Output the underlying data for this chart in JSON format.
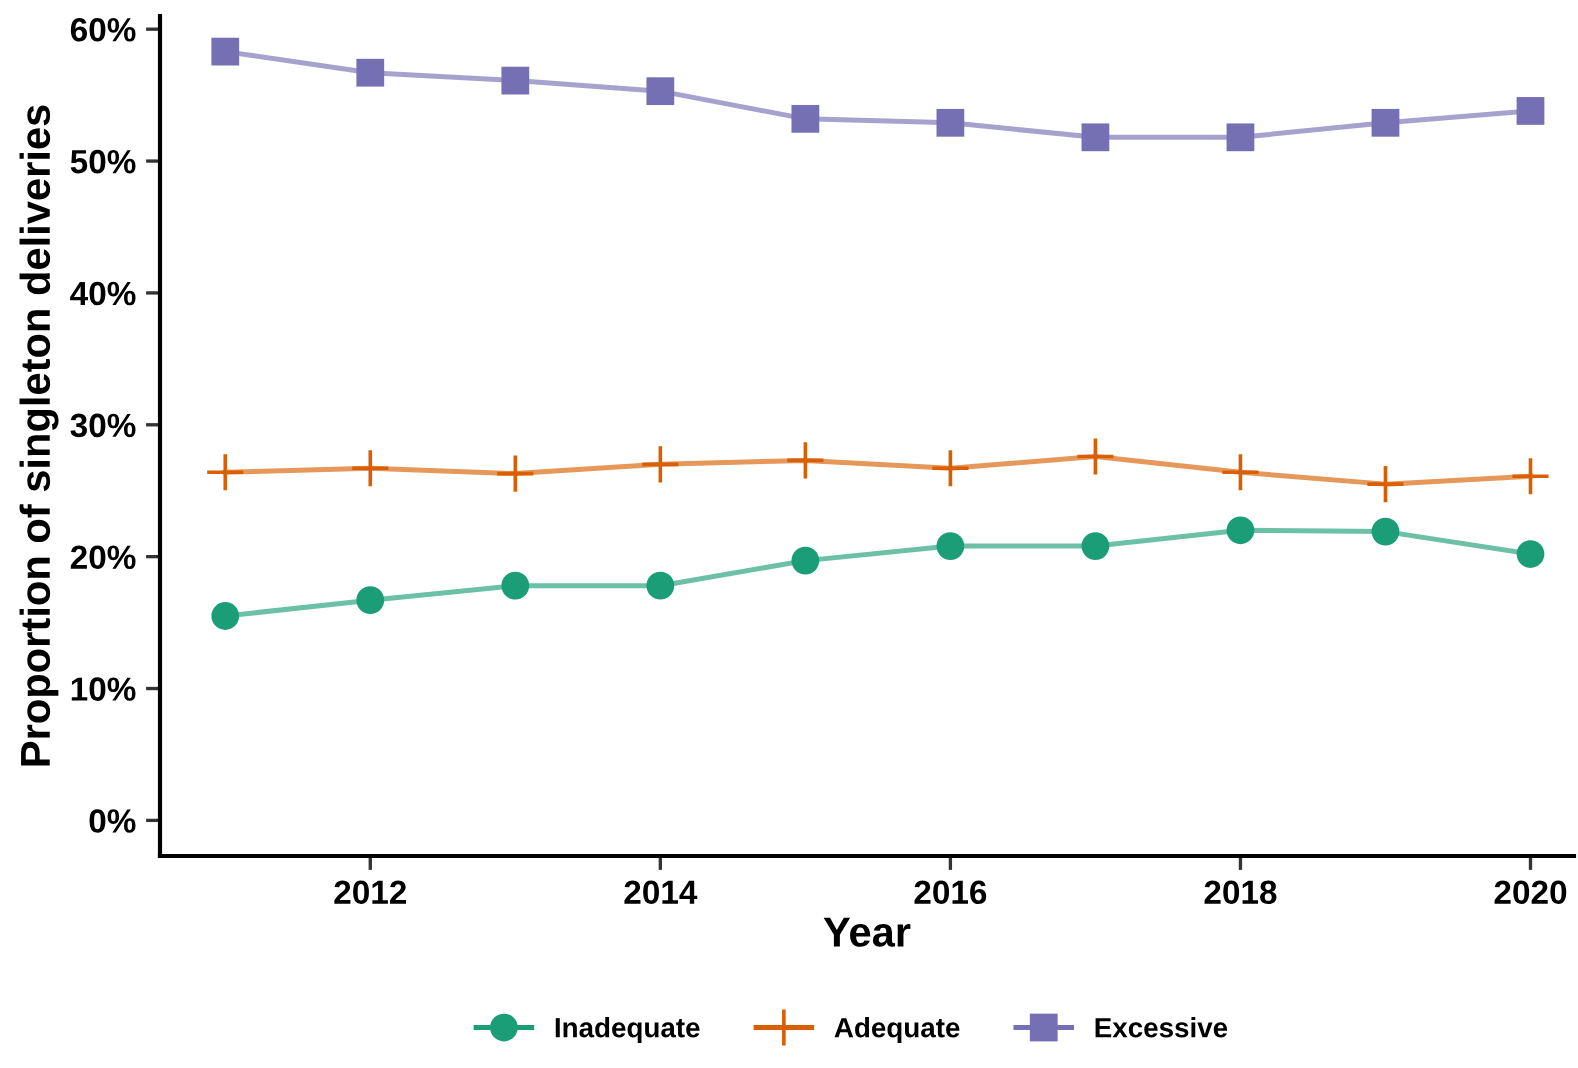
{
  "chart_data": {
    "type": "line",
    "xlabel": "Year",
    "ylabel": "Proportion of singleton deliveries",
    "x": [
      2011,
      2012,
      2013,
      2014,
      2015,
      2016,
      2017,
      2018,
      2019,
      2020
    ],
    "series": [
      {
        "name": "Inadequate",
        "color": "#1b9e77",
        "marker": "circle",
        "values": [
          15.5,
          16.7,
          17.8,
          17.8,
          19.7,
          20.8,
          20.8,
          22.0,
          21.9,
          20.2
        ]
      },
      {
        "name": "Adequate",
        "color": "#d95f02",
        "marker": "cross",
        "values": [
          26.4,
          26.7,
          26.3,
          27.0,
          27.3,
          26.7,
          27.6,
          26.4,
          25.5,
          26.1
        ]
      },
      {
        "name": "Excessive",
        "color": "#7570b3",
        "marker": "square",
        "values": [
          58.3,
          56.7,
          56.1,
          55.3,
          53.2,
          52.9,
          51.8,
          51.8,
          52.9,
          53.8
        ]
      }
    ],
    "xlim": [
      2010.55,
      2020.3
    ],
    "xticks": [
      2012,
      2014,
      2016,
      2018,
      2020
    ],
    "ylim": [
      -2.7,
      61
    ],
    "yticks": [
      {
        "value": 0,
        "label": "0%"
      },
      {
        "value": 10,
        "label": "10%"
      },
      {
        "value": 20,
        "label": "20%"
      },
      {
        "value": 30,
        "label": "30%"
      },
      {
        "value": 40,
        "label": "40%"
      },
      {
        "value": 50,
        "label": "50%"
      },
      {
        "value": 60,
        "label": "60%"
      }
    ],
    "grid": false,
    "legend": "bottom",
    "line_style": "solid"
  }
}
